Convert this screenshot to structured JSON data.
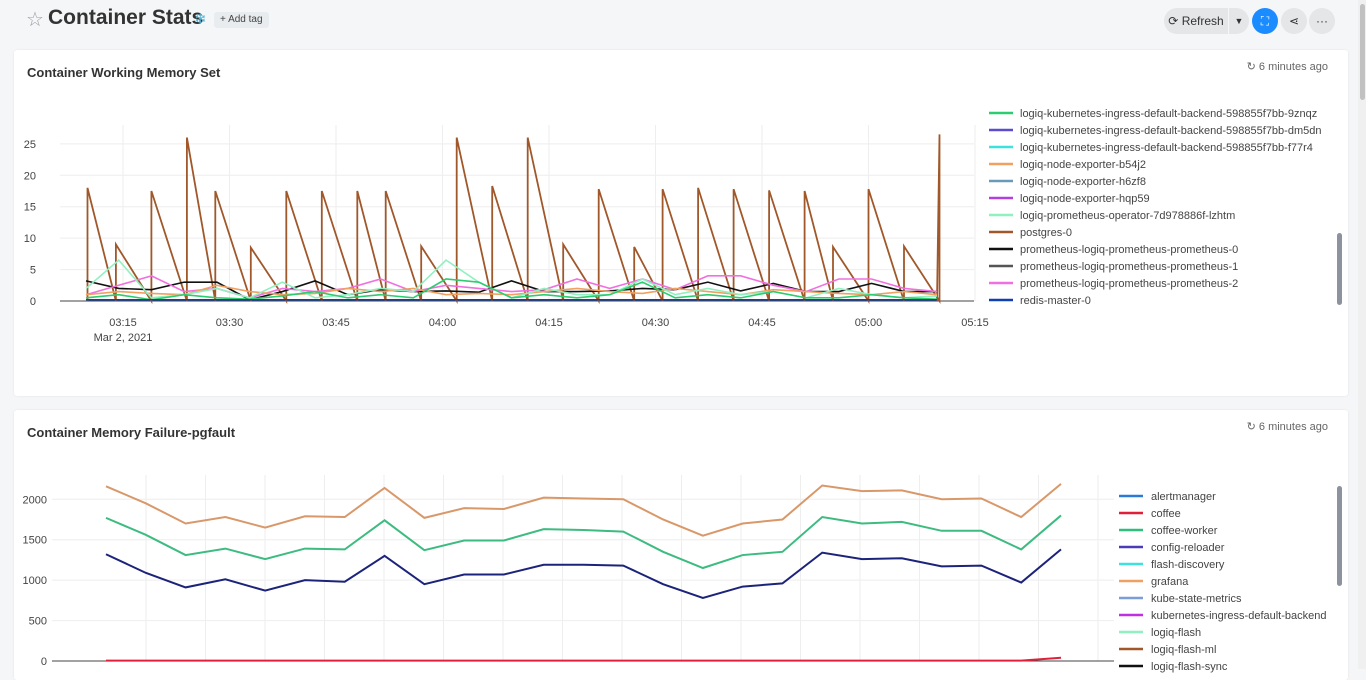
{
  "header": {
    "title": "Container Stats",
    "add_tag": "+ Add tag",
    "refresh_label": "Refresh",
    "star_icon": "star-icon",
    "snow_icon": "snowflake-icon"
  },
  "panels": [
    {
      "title": "Container Working Memory Set",
      "updated": "6 minutes ago"
    },
    {
      "title": "Container Memory Failure-pgfault",
      "updated": "6 minutes ago"
    }
  ],
  "chart_data": [
    {
      "type": "line",
      "x_ticks": [
        "03:15",
        "03:30",
        "03:45",
        "04:00",
        "04:15",
        "04:30",
        "04:45",
        "05:00",
        "05:15"
      ],
      "x_date_label": "Mar 2, 2021",
      "y_ticks": [
        0,
        5,
        10,
        15,
        20,
        25
      ],
      "ylim": [
        0,
        28
      ],
      "grid": true,
      "legend_placement": "right",
      "legend": [
        {
          "name": "logiq-kubernetes-ingress-default-backend-598855f7bb-9znqz",
          "color": "#2ecc71"
        },
        {
          "name": "logiq-kubernetes-ingress-default-backend-598855f7bb-dm5dn",
          "color": "#5b4ccf"
        },
        {
          "name": "logiq-kubernetes-ingress-default-backend-598855f7bb-f77r4",
          "color": "#3fe0e0"
        },
        {
          "name": "logiq-node-exporter-b54j2",
          "color": "#f0a060"
        },
        {
          "name": "logiq-node-exporter-h6zf8",
          "color": "#6a9ab8"
        },
        {
          "name": "logiq-node-exporter-hqp59",
          "color": "#b040e0"
        },
        {
          "name": "logiq-prometheus-operator-7d978886f-lzhtm",
          "color": "#90f0c0"
        },
        {
          "name": "postgres-0",
          "color": "#a0582a"
        },
        {
          "name": "prometheus-logiq-prometheus-prometheus-0",
          "color": "#111111"
        },
        {
          "name": "prometheus-logiq-prometheus-prometheus-1",
          "color": "#555555"
        },
        {
          "name": "prometheus-logiq-prometheus-prometheus-2",
          "color": "#f070e0"
        },
        {
          "name": "redis-master-0",
          "color": "#1040b0"
        }
      ],
      "series": [
        {
          "name": "postgres-0",
          "color": "#a0582a",
          "x_min": [
            10,
            14,
            19,
            24,
            28,
            33,
            38,
            43,
            48,
            52,
            57,
            62,
            67,
            72,
            77,
            82,
            87,
            91,
            96,
            101,
            106,
            111,
            115,
            120,
            125,
            130
          ],
          "values": [
            [
              0,
              18
            ],
            [
              0,
              9
            ],
            [
              0,
              17.5
            ],
            [
              0,
              26
            ],
            [
              0,
              17.5
            ],
            [
              0,
              8.5
            ],
            [
              0,
              17.5
            ],
            [
              0,
              17.5
            ],
            [
              0,
              17.5
            ],
            [
              0,
              17.5
            ],
            [
              0,
              8.7
            ],
            [
              0,
              26
            ],
            [
              0,
              18.3
            ],
            [
              0,
              26
            ],
            [
              0,
              9
            ],
            [
              0,
              17.8
            ],
            [
              0,
              8.6
            ],
            [
              0,
              17.8
            ],
            [
              0,
              18
            ],
            [
              0,
              17.8
            ],
            [
              0,
              17.6
            ],
            [
              0,
              17.5
            ],
            [
              0,
              8.6
            ],
            [
              0,
              17.8
            ],
            [
              0,
              8.7
            ],
            [
              0,
              26.5
            ]
          ]
        },
        {
          "name": "prometheus-logiq-prometheus-prometheus-0",
          "color": "#111111",
          "values": [
            3.2,
            2.0,
            1.8,
            3.0,
            3.0,
            0.2,
            1.5,
            3.2,
            1.0,
            1.8,
            1.5,
            1.6,
            1.4,
            3.2,
            1.5,
            1.5,
            1.6,
            2.0,
            1.8,
            3.0,
            1.6,
            2.8,
            1.5,
            1.5,
            2.8,
            1.5,
            1.5
          ]
        },
        {
          "name": "prometheus-logiq-prometheus-prometheus-2",
          "color": "#f070e0",
          "values": [
            1.0,
            2.5,
            4.0,
            1.5,
            2.0,
            0.5,
            2.0,
            1.5,
            2.0,
            3.5,
            1.5,
            2.5,
            2.0,
            1.5,
            1.8,
            3.5,
            2.0,
            3.5,
            1.8,
            4.0,
            4.0,
            2.5,
            1.5,
            3.5,
            3.5,
            2.0,
            1.5
          ]
        },
        {
          "name": "logiq-node-exporter-b54j2",
          "color": "#f0a060",
          "values": [
            1.0,
            1.5,
            1.2,
            1.0,
            2.5,
            1.5,
            1.0,
            1.2,
            2.0,
            1.5,
            2.0,
            1.0,
            1.2,
            1.0,
            1.5,
            2.0,
            1.5,
            1.2,
            2.0,
            1.5,
            1.0,
            1.8,
            1.5,
            1.2,
            1.0,
            1.5,
            1.0
          ]
        },
        {
          "name": "logiq-prometheus-operator-7d978886f-lzhtm",
          "color": "#90f0c0",
          "values": [
            2.0,
            6.5,
            0.5,
            1.0,
            2.0,
            0.5,
            3.0,
            0.5,
            1.0,
            2.0,
            1.5,
            6.5,
            3.0,
            0.5,
            2.0,
            1.0,
            1.0,
            3.5,
            1.0,
            2.0,
            1.0,
            1.5,
            0.5,
            2.0,
            1.0,
            0.5,
            0.8
          ]
        },
        {
          "name": "logiq-kubernetes-ingress-default-backend-598855f7bb-9znqz",
          "color": "#2ecc71",
          "values": [
            0.5,
            1.0,
            0.2,
            1.0,
            0.5,
            0.3,
            0.8,
            1.5,
            0.5,
            1.0,
            0.5,
            3.5,
            3.0,
            0.5,
            1.0,
            0.5,
            1.0,
            3.0,
            0.5,
            1.0,
            0.5,
            1.5,
            0.5,
            0.5,
            1.0,
            0.5,
            0.3
          ]
        },
        {
          "name": "redis-master-0",
          "color": "#1040b0",
          "values": [
            0.2,
            0.2,
            0.2,
            0.2,
            0.2,
            0.2,
            0.2,
            0.2,
            0.2,
            0.2,
            0.2,
            0.2,
            0.2,
            0.2,
            0.2,
            0.2,
            0.2,
            0.2,
            0.2,
            0.2,
            0.2,
            0.2,
            0.2,
            0.2,
            0.2,
            0.2,
            0.2
          ]
        }
      ]
    },
    {
      "type": "line",
      "y_ticks": [
        0,
        500,
        1000,
        1500,
        2000
      ],
      "ylim": [
        0,
        2300
      ],
      "grid": true,
      "legend_placement": "right",
      "legend": [
        {
          "name": "alertmanager",
          "color": "#2a7ad6"
        },
        {
          "name": "coffee",
          "color": "#e0203a"
        },
        {
          "name": "coffee-worker",
          "color": "#2fbf7a"
        },
        {
          "name": "config-reloader",
          "color": "#4a3bb8"
        },
        {
          "name": "flash-discovery",
          "color": "#3fe0e0"
        },
        {
          "name": "grafana",
          "color": "#f0a060"
        },
        {
          "name": "kube-state-metrics",
          "color": "#7a9ed8"
        },
        {
          "name": "kubernetes-ingress-default-backend",
          "color": "#c030e0"
        },
        {
          "name": "logiq-flash",
          "color": "#90f0c0"
        },
        {
          "name": "logiq-flash-ml",
          "color": "#a0582a"
        },
        {
          "name": "logiq-flash-sync",
          "color": "#111111"
        }
      ],
      "series": [
        {
          "name": "grafana",
          "color": "#d9986a",
          "values": [
            2160,
            1950,
            1700,
            1780,
            1650,
            1790,
            1780,
            2140,
            1770,
            1890,
            1880,
            2020,
            2010,
            2000,
            1750,
            1550,
            1700,
            1750,
            2170,
            2100,
            2110,
            2000,
            2010,
            1780,
            2190
          ]
        },
        {
          "name": "coffee-worker",
          "color": "#3dbb80",
          "values": [
            1770,
            1560,
            1310,
            1390,
            1260,
            1390,
            1380,
            1740,
            1370,
            1490,
            1490,
            1630,
            1620,
            1600,
            1350,
            1150,
            1310,
            1350,
            1780,
            1700,
            1720,
            1610,
            1610,
            1380,
            1800
          ]
        },
        {
          "name": "config-reloader",
          "color": "#1c237a",
          "values": [
            1320,
            1090,
            910,
            1010,
            870,
            1000,
            980,
            1300,
            950,
            1070,
            1070,
            1190,
            1190,
            1180,
            950,
            780,
            920,
            960,
            1340,
            1260,
            1270,
            1170,
            1180,
            970,
            1380
          ]
        },
        {
          "name": "coffee",
          "color": "#e0203a",
          "values": [
            5,
            5,
            5,
            5,
            5,
            5,
            5,
            5,
            5,
            5,
            5,
            5,
            5,
            5,
            5,
            5,
            5,
            5,
            5,
            5,
            5,
            5,
            5,
            5,
            40
          ]
        }
      ]
    }
  ]
}
